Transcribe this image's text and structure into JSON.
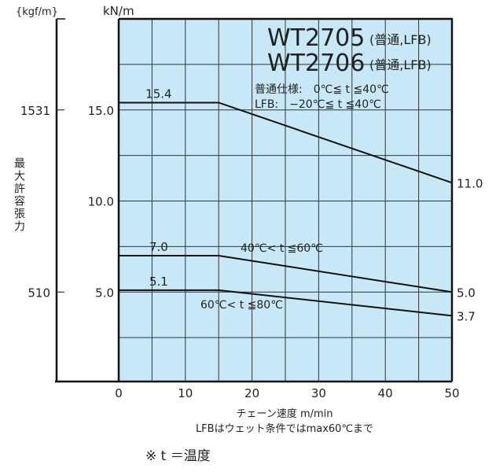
{
  "chart_data": {
    "type": "line",
    "title_lines": [
      "WT2705",
      "WT2706"
    ],
    "title_suffix": "(普通,LFB)",
    "conditions": [
      "普通仕様:　0℃≦ t ≦40℃",
      "LFB:　−20℃≦ t ≦40℃"
    ],
    "xlabel": "チェーン速度 m/min",
    "xlabel_note": "LFBはウェット条件ではmax60℃まで",
    "ylabel": "最大許容張力",
    "y_unit": "kN/m",
    "y2_unit": "{kgf/m}",
    "xlim": [
      0,
      50
    ],
    "ylim": [
      0,
      20
    ],
    "grid": true,
    "x_ticks": [
      "0",
      "10",
      "20",
      "30",
      "40",
      "50"
    ],
    "y_ticks": [
      "5.0",
      "10.0",
      "15.0"
    ],
    "y2_ticks": [
      "510",
      "1531"
    ],
    "footnote": "※ t ＝温度",
    "series": [
      {
        "name": "0〜40℃",
        "x": [
          0,
          15,
          50
        ],
        "y": [
          15.4,
          15.4,
          11.0
        ],
        "label_start": "15.4",
        "label_end": "11.0",
        "annotation": ""
      },
      {
        "name": "40〜60℃",
        "x": [
          0,
          15,
          50
        ],
        "y": [
          7.0,
          7.0,
          5.0
        ],
        "label_start": "7.0",
        "label_end": "5.0",
        "annotation": "40℃< t ≦60℃"
      },
      {
        "name": "60〜80℃",
        "x": [
          0,
          15,
          50
        ],
        "y": [
          5.1,
          5.1,
          3.7
        ],
        "label_start": "5.1",
        "label_end": "3.7",
        "annotation": "60℃< t ≦80℃"
      }
    ],
    "colors": {
      "plot_bg": "#c9e8f7",
      "grid": "#333333",
      "line": "#111111"
    }
  }
}
